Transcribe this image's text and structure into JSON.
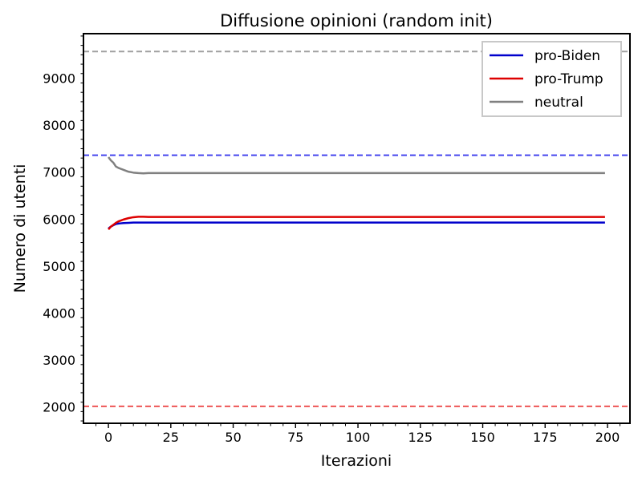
{
  "chart_data": {
    "type": "line",
    "title": "Diffusione opinioni (random init)",
    "xlabel": "Iterazioni",
    "ylabel": "Numero di utenti",
    "xlim": [
      -10,
      209
    ],
    "ylim": [
      1650,
      9950
    ],
    "xticks": [
      0,
      25,
      50,
      75,
      100,
      125,
      150,
      175,
      200
    ],
    "yticks": [
      2000,
      3000,
      4000,
      5000,
      6000,
      7000,
      8000,
      9000
    ],
    "grid": false,
    "legend_position": "top-right",
    "series": [
      {
        "name": "pro-Biden",
        "color": "#0000cc",
        "x": [
          0,
          1,
          2,
          3,
          4,
          5,
          6,
          8,
          10,
          12,
          15,
          20,
          30,
          50,
          100,
          150,
          199
        ],
        "y": [
          5800,
          5840,
          5870,
          5895,
          5905,
          5910,
          5915,
          5920,
          5925,
          5925,
          5925,
          5925,
          5925,
          5925,
          5925,
          5925,
          5925
        ]
      },
      {
        "name": "pro-Trump",
        "color": "#dd0000",
        "x": [
          0,
          1,
          2,
          3,
          4,
          5,
          6,
          8,
          10,
          12,
          14,
          16,
          20,
          30,
          50,
          100,
          150,
          199
        ],
        "y": [
          5780,
          5840,
          5880,
          5920,
          5950,
          5970,
          5990,
          6020,
          6040,
          6050,
          6050,
          6045,
          6045,
          6045,
          6045,
          6045,
          6045,
          6045
        ]
      },
      {
        "name": "neutral",
        "color": "#808080",
        "x": [
          0,
          1,
          2,
          3,
          4,
          5,
          6,
          8,
          10,
          12,
          14,
          16,
          20,
          30,
          50,
          100,
          150,
          199
        ],
        "y": [
          7320,
          7250,
          7200,
          7120,
          7090,
          7070,
          7050,
          7010,
          6990,
          6980,
          6975,
          6980,
          6980,
          6980,
          6980,
          6980,
          6980,
          6980
        ]
      }
    ],
    "reference_lines": [
      {
        "y": 9570,
        "color": "#a0a0a0",
        "style": "dashed"
      },
      {
        "y": 7360,
        "color": "#4444ee",
        "style": "dashed"
      },
      {
        "y": 2010,
        "color": "#ee5555",
        "style": "dashed"
      }
    ]
  }
}
